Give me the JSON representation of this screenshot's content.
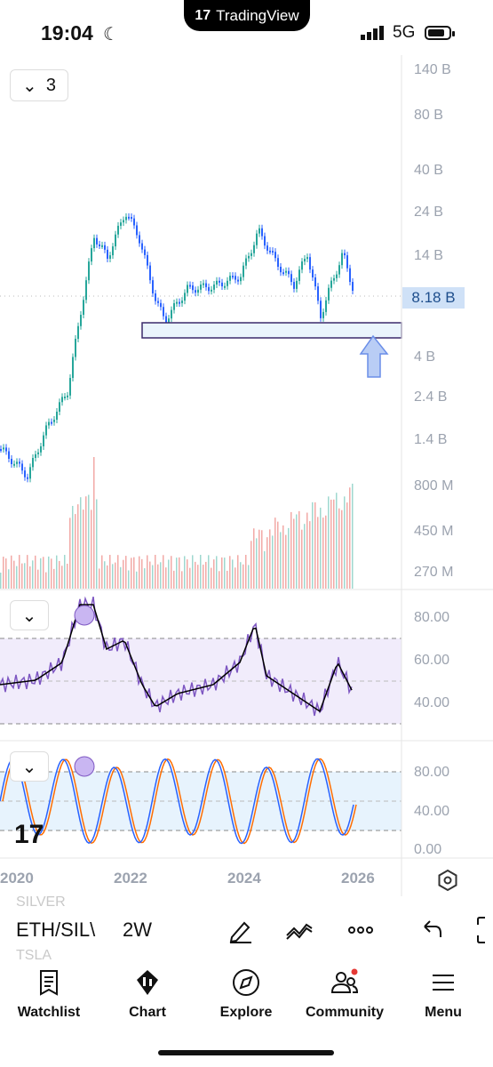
{
  "status": {
    "time": "19:04",
    "network": "5G",
    "app_brand": "TradingView",
    "moon_icon": "moon-icon"
  },
  "main_chart": {
    "collapse_count": "3",
    "y_axis_labels": [
      "140 B",
      "80 B",
      "40 B",
      "24 B",
      "14 B",
      "8.18 B",
      "4 B",
      "2.4 B",
      "1.4 B",
      "800 M",
      "450 M",
      "270 M"
    ],
    "last_price_badge": "8.18 B",
    "up_color": "#26a69a",
    "down_color": "#2962ff"
  },
  "rsi_panel": {
    "y_axis_labels": [
      "80.00",
      "60.00",
      "40.00"
    ],
    "line_color": "#7e57c2",
    "ma_color": "#000000"
  },
  "stoch_panel": {
    "y_axis_labels": [
      "80.00",
      "40.00",
      "0.00"
    ],
    "k_color": "#2962ff",
    "d_color": "#ff6d00"
  },
  "x_axis_labels": [
    "2020",
    "2022",
    "2024",
    "2026"
  ],
  "toolbar": {
    "symbol": "ETH/SIL\\",
    "interval": "2W",
    "ghost_symbols": [
      "SILVER",
      "TSLA"
    ]
  },
  "nav": {
    "items": [
      {
        "label": "Watchlist",
        "icon": "watchlist-icon"
      },
      {
        "label": "Chart",
        "icon": "chart-icon"
      },
      {
        "label": "Explore",
        "icon": "compass-icon"
      },
      {
        "label": "Community",
        "icon": "community-icon"
      },
      {
        "label": "Menu",
        "icon": "menu-icon"
      }
    ]
  }
}
